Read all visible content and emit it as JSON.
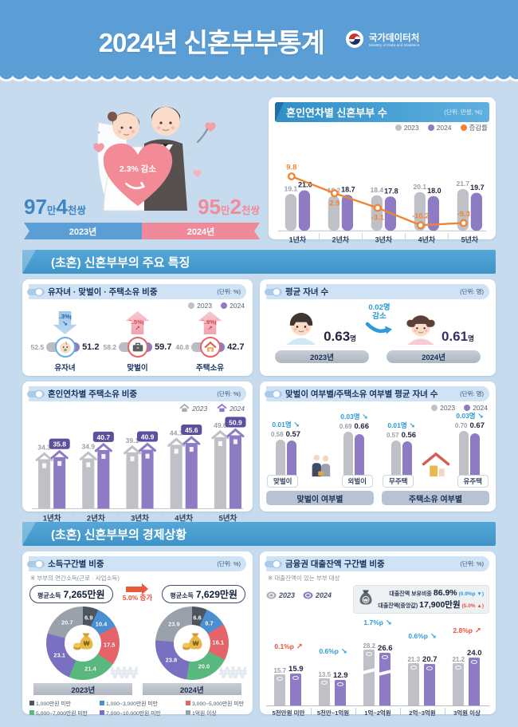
{
  "header": {
    "title": "2024년 신혼부부통계",
    "logo_name": "국가데이터처",
    "logo_sub": "Ministry of Data and Statistics"
  },
  "hero": {
    "decrease_badge": "2.3% 감소",
    "left_count": {
      "n1": "97",
      "u1": "만",
      "n2": "4",
      "u2": "천쌍"
    },
    "right_count": {
      "n1": "95",
      "u1": "만",
      "n2": "2",
      "u2": "천쌍"
    },
    "left_year": "2023년",
    "right_year": "2024년"
  },
  "sections": [
    "(초혼) 신혼부부의 주요 특징",
    "(초혼) 신혼부부의 경제상황"
  ],
  "years": {
    "y2023": "2023",
    "y2024": "2024"
  },
  "colors": {
    "c2023": "#bfc1c7",
    "c2024": "#8d7cc4",
    "badge2024": "#5d4f9e",
    "line": "#f08432",
    "up": "#e8503a",
    "down": "#2e9bd6",
    "navy": "#16325c"
  },
  "chart_data": [
    {
      "id": "newlyweds-by-marriage-year",
      "type": "bar",
      "title": "혼인연차별 신혼부부 수",
      "unit": "(단위: 만쌍, %)",
      "categories": [
        "1년차",
        "2년차",
        "3년차",
        "4년차",
        "5년차"
      ],
      "series": [
        {
          "name": "2023",
          "color": "#bfc1c7",
          "values": [
            19.1,
            18.2,
            18.4,
            20.1,
            21.7
          ]
        },
        {
          "name": "2024",
          "color": "#8d7cc4",
          "values": [
            21.0,
            18.7,
            17.8,
            18.0,
            19.7
          ]
        }
      ],
      "line_series": {
        "name": "증감률",
        "color": "#f08432",
        "values": [
          9.8,
          2.9,
          -3.1,
          -10.2,
          -9.3
        ]
      },
      "legend_position": "top-right"
    },
    {
      "id": "traits-share",
      "type": "bar",
      "title": "유자녀 · 맞벌이 · 주택소유 비중",
      "unit": "(단위: %)",
      "categories": [
        "유자녀",
        "맞벌이",
        "주택소유"
      ],
      "series": [
        {
          "name": "2023",
          "values": [
            52.5,
            58.2,
            40.8
          ]
        },
        {
          "name": "2024",
          "values": [
            51.2,
            59.7,
            42.7
          ]
        }
      ],
      "changes": [
        {
          "text": "1.3%p",
          "dir": "down"
        },
        {
          "text": "1.5%p",
          "dir": "up"
        },
        {
          "text": "1.9%p",
          "dir": "up"
        }
      ]
    },
    {
      "id": "avg-children",
      "type": "comparison",
      "title": "평균 자녀 수",
      "unit": "(단위: 명)",
      "y2023": {
        "label": "2023년",
        "value": "0.63",
        "suffix": "명"
      },
      "y2024": {
        "label": "2024년",
        "value": "0.61",
        "suffix": "명"
      },
      "change": {
        "text": "0.02명",
        "label": "감소",
        "dir": "down"
      }
    },
    {
      "id": "home-ownership-by-marriage-year",
      "type": "bar",
      "title": "혼인연차별 주택소유 비중",
      "unit": "(단위: %)",
      "categories": [
        "1년차",
        "2년차",
        "3년차",
        "4년차",
        "5년차"
      ],
      "series": [
        {
          "name": "2023",
          "values": [
            34.3,
            34.9,
            39.1,
            44.3,
            49.6
          ]
        },
        {
          "name": "2024",
          "values": [
            35.8,
            40.7,
            40.9,
            45.6,
            50.9
          ]
        }
      ]
    },
    {
      "id": "avg-children-by-status",
      "type": "bar",
      "title": "맞벌이 여부별/주택소유 여부별 평균 자녀 수",
      "unit": "(단위: 명)",
      "groups": [
        {
          "label": "맞벌이 여부별",
          "items": [
            {
              "label": "맞벌이",
              "v2023": 0.58,
              "v2024": 0.57,
              "change": "0.01명"
            },
            {
              "label": "외벌이",
              "v2023": 0.69,
              "v2024": 0.66,
              "change": "0.03명"
            }
          ]
        },
        {
          "label": "주택소유 여부별",
          "items": [
            {
              "label": "무주택",
              "v2023": 0.57,
              "v2024": 0.56,
              "change": "0.01명"
            },
            {
              "label": "유주택",
              "v2023": 0.7,
              "v2024": 0.67,
              "change": "0.03명"
            }
          ]
        }
      ]
    },
    {
      "id": "income-bracket-share",
      "type": "pie",
      "title": "소득구간별 비중",
      "unit": "(단위: %)",
      "note": "※ 부부의 연간소득(근로 · 사업소득)",
      "avg_2023": {
        "label": "평균소득",
        "value": "7,265만원"
      },
      "avg_2024": {
        "label": "평균소득",
        "value": "7,629만원"
      },
      "growth": "5.0% 증가",
      "year_labels": [
        "2023년",
        "2024년"
      ],
      "legend": [
        {
          "label": "1,000만원 미만",
          "color": "#4d565e"
        },
        {
          "label": "1,000~3,000만원 미만",
          "color": "#4a8fd2"
        },
        {
          "label": "3,000~5,000만원 미만",
          "color": "#e4646a"
        },
        {
          "label": "5,000~7,000만원 미만",
          "color": "#58b87e"
        },
        {
          "label": "7,000~10,000만원 미만",
          "color": "#7a70c2"
        },
        {
          "label": "1억원 이상",
          "color": "#99a1ab"
        }
      ],
      "values_2023": [
        6.9,
        10.4,
        17.5,
        21.4,
        23.1,
        20.7
      ],
      "values_2024": [
        6.6,
        9.7,
        16.1,
        20.0,
        23.8,
        23.9
      ]
    },
    {
      "id": "loan-balance-share",
      "type": "bar",
      "title": "금융권 대출잔액 구간별 비중",
      "unit": "(단위: %)",
      "note": "※ 대출잔액이 있는 부부 대상",
      "summary": [
        {
          "label": "대출잔액 보유비중",
          "value": "86.9%",
          "change": "(0.9%p ▼)",
          "dir": "down"
        },
        {
          "label": "대출잔액(중앙값)",
          "value": "17,900만원",
          "change": "(5.0% ▲)",
          "dir": "up"
        }
      ],
      "categories": [
        "5천만원 미만",
        "5천만~1억원",
        "1억~2억원",
        "2억~3억원",
        "3억원 이상"
      ],
      "series": [
        {
          "name": "2023",
          "values": [
            15.7,
            13.5,
            28.2,
            21.3,
            21.2
          ]
        },
        {
          "name": "2024",
          "values": [
            15.9,
            12.9,
            26.6,
            20.7,
            24.0
          ]
        }
      ],
      "changes": [
        {
          "text": "0.1%p",
          "dir": "up"
        },
        {
          "text": "0.6%p",
          "dir": "down"
        },
        {
          "text": "1.7%p",
          "dir": "down"
        },
        {
          "text": "0.6%p",
          "dir": "down"
        },
        {
          "text": "2.8%p",
          "dir": "up"
        }
      ],
      "axis_break_category_index": 2
    }
  ]
}
